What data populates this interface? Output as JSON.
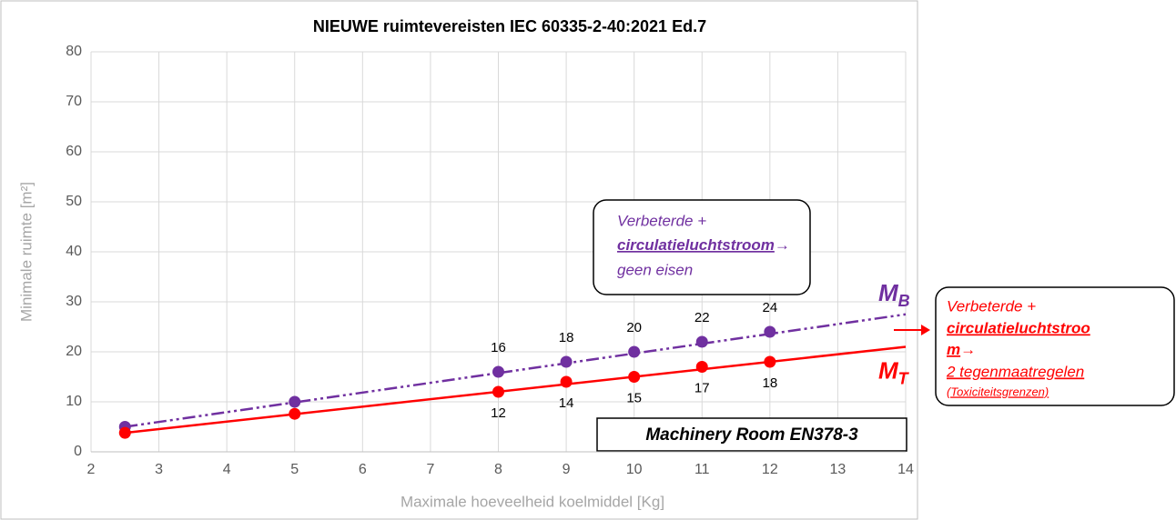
{
  "chart_data": {
    "type": "line",
    "title": "NIEUWE ruimtevereisten IEC 60335-2-40:2021 Ed.7",
    "xlabel": "Maximale hoeveelheid koelmiddel [Kg]",
    "ylabel": "Minimale ruimte [m²]",
    "xlim": [
      2,
      14
    ],
    "xticks": [
      2,
      3,
      4,
      5,
      6,
      7,
      8,
      9,
      10,
      11,
      12,
      13,
      14
    ],
    "ylim": [
      0,
      80
    ],
    "yticks": [
      0,
      10,
      20,
      30,
      40,
      50,
      60,
      70,
      80
    ],
    "grid": true,
    "series": [
      {
        "name": "M",
        "sub": "B",
        "color": "#7030a0",
        "dash": "dash-dot-dot",
        "x": [
          2.5,
          5,
          8,
          9,
          10,
          11,
          12
        ],
        "values": [
          5,
          10,
          16,
          18,
          20,
          22,
          24
        ],
        "value_labels": [
          null,
          null,
          "16",
          "18",
          "20",
          "22",
          "24"
        ],
        "label_side": "above",
        "trendline": {
          "x": [
            2.5,
            14
          ],
          "values": [
            5,
            27.5
          ]
        }
      },
      {
        "name": "M",
        "sub": "T",
        "color": "#ff0000",
        "dash": "solid",
        "x": [
          2.5,
          5,
          8,
          9,
          10,
          11,
          12
        ],
        "values": [
          3.8,
          7.6,
          12,
          14,
          15,
          17,
          18
        ],
        "value_labels": [
          null,
          null,
          "12",
          "14",
          "15",
          "17",
          "18"
        ],
        "label_side": "below",
        "trendline": {
          "x": [
            2.5,
            14
          ],
          "values": [
            3.8,
            21
          ]
        }
      }
    ],
    "annotations": {
      "box_b": [
        "Verbeterde +",
        "circulatieluchtstroom",
        "→",
        "geen eisen"
      ],
      "box_t": [
        "Verbeterde +",
        "circulatieluchtstroo",
        "m",
        "→",
        "2 tegenmaatregelen",
        "(Toxiciteitsgrenzen)"
      ],
      "box_room": "Machinery Room EN378-3"
    }
  }
}
